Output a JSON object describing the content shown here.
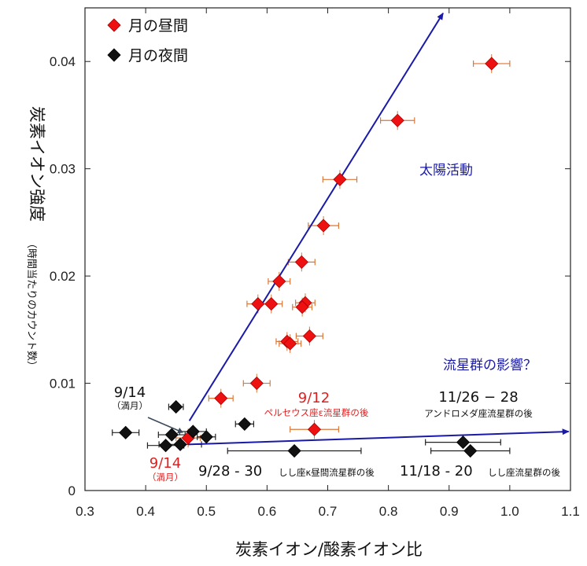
{
  "chart_data": {
    "type": "scatter",
    "xlabel": "炭素イオン/酸素イオン比",
    "ylabel": "炭素イオン強度",
    "ylabel_sub": "（時間当たりのカウント数）",
    "xlim": [
      0.3,
      1.1
    ],
    "ylim": [
      0,
      0.045
    ],
    "x_ticks": [
      "0.3",
      "0.4",
      "0.5",
      "0.6",
      "0.7",
      "0.8",
      "0.9",
      "1.0",
      "1.1"
    ],
    "y_ticks": [
      "0",
      "0.01",
      "0.02",
      "0.03",
      "0.04"
    ],
    "legend_position": "top-left",
    "series": [
      {
        "name": "月の昼間",
        "color": "#ee1111",
        "marker": "diamond",
        "points": [
          {
            "x": 0.97,
            "y": 0.0398,
            "xerr": 0.03
          },
          {
            "x": 0.815,
            "y": 0.0345,
            "xerr": 0.028
          },
          {
            "x": 0.72,
            "y": 0.029,
            "xerr": 0.028
          },
          {
            "x": 0.693,
            "y": 0.0247,
            "xerr": 0.025
          },
          {
            "x": 0.657,
            "y": 0.0213,
            "xerr": 0.022
          },
          {
            "x": 0.62,
            "y": 0.0195,
            "xerr": 0.018
          },
          {
            "x": 0.585,
            "y": 0.0174,
            "xerr": 0.018
          },
          {
            "x": 0.607,
            "y": 0.0174,
            "xerr": 0.018
          },
          {
            "x": 0.663,
            "y": 0.0175,
            "xerr": 0.016
          },
          {
            "x": 0.658,
            "y": 0.0171,
            "xerr": 0.016
          },
          {
            "x": 0.633,
            "y": 0.0139,
            "xerr": 0.018
          },
          {
            "x": 0.638,
            "y": 0.0137,
            "xerr": 0.018
          },
          {
            "x": 0.67,
            "y": 0.0144,
            "xerr": 0.022
          },
          {
            "x": 0.583,
            "y": 0.01,
            "xerr": 0.022
          },
          {
            "x": 0.524,
            "y": 0.0086,
            "xerr": 0.02
          },
          {
            "x": 0.678,
            "y": 0.0057,
            "xerr": 0.04
          },
          {
            "x": 0.47,
            "y": 0.0049,
            "xerr": 0.02
          }
        ]
      },
      {
        "name": "月の夜間",
        "color": "#111111",
        "marker": "diamond",
        "points": [
          {
            "x": 0.367,
            "y": 0.0054,
            "xerr": 0.022
          },
          {
            "x": 0.45,
            "y": 0.0078,
            "xerr": 0.012
          },
          {
            "x": 0.443,
            "y": 0.0052,
            "xerr": 0.022
          },
          {
            "x": 0.478,
            "y": 0.0055,
            "xerr": 0.022
          },
          {
            "x": 0.5,
            "y": 0.005,
            "xerr": 0.015
          },
          {
            "x": 0.563,
            "y": 0.0062,
            "xerr": 0.015
          },
          {
            "x": 0.433,
            "y": 0.0042,
            "xerr": 0.03
          },
          {
            "x": 0.457,
            "y": 0.0043,
            "xerr": 0.035
          },
          {
            "x": 0.645,
            "y": 0.0037,
            "xerr": 0.11
          },
          {
            "x": 0.923,
            "y": 0.0045,
            "xerr": 0.062
          },
          {
            "x": 0.935,
            "y": 0.0037,
            "xerr": 0.065
          }
        ]
      }
    ],
    "trend_arrows": [
      {
        "name": "太陽活動",
        "from": [
          0.472,
          0.0065
        ],
        "to": [
          0.89,
          0.0445
        ],
        "color": "#1a1aa8"
      },
      {
        "name": "流星群の影響？",
        "from": [
          0.47,
          0.0043
        ],
        "to": [
          1.097,
          0.0055
        ],
        "color": "#1a1aa8"
      }
    ],
    "annotations": [
      {
        "text": "太陽活動",
        "color": "#1a1aa8"
      },
      {
        "text": "流星群の影響？",
        "color": "#1a1aa8"
      },
      {
        "text": "9/12",
        "color": "#e02020"
      },
      {
        "text": "ペルセウス座ε流星群の後",
        "color": "#e02020"
      },
      {
        "text": "9/14",
        "color": "#111111"
      },
      {
        "text": "（満月）",
        "color": "#111111"
      },
      {
        "text": "9/14",
        "color": "#e02020"
      },
      {
        "text": "（満月）",
        "color": "#e02020"
      },
      {
        "text": "11/26 − 28",
        "color": "#111111"
      },
      {
        "text": "アンドロメダ座流星群の後",
        "color": "#111111"
      },
      {
        "text": "9/28 - 30",
        "color": "#111111"
      },
      {
        "text": "しし座κ昼間流星群の後",
        "color": "#111111"
      },
      {
        "text": "11/18 - 20",
        "color": "#111111"
      },
      {
        "text": "しし座流星群の後",
        "color": "#111111"
      }
    ]
  }
}
